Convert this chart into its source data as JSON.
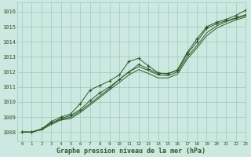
{
  "xlabel": "Graphe pression niveau de la mer (hPa)",
  "bg_color": "#cce8e0",
  "grid_color": "#99ccbb",
  "line_color": "#2d5a27",
  "xlim": [
    -0.5,
    23
  ],
  "ylim": [
    1007.4,
    1016.6
  ],
  "yticks": [
    1008,
    1009,
    1010,
    1011,
    1012,
    1013,
    1014,
    1015,
    1016
  ],
  "xticks": [
    0,
    1,
    2,
    3,
    4,
    5,
    6,
    7,
    8,
    9,
    10,
    11,
    12,
    13,
    14,
    15,
    16,
    17,
    18,
    19,
    20,
    21,
    22,
    23
  ],
  "line_main": [
    1008.0,
    1008.0,
    1008.2,
    1008.6,
    1008.9,
    1009.1,
    1009.5,
    1010.1,
    1010.6,
    1011.0,
    1011.5,
    1012.0,
    1012.5,
    1012.2,
    1011.9,
    1011.9,
    1012.1,
    1013.2,
    1014.0,
    1014.9,
    1015.2,
    1015.4,
    1015.6,
    1015.8
  ],
  "line_high": [
    1008.0,
    1008.0,
    1008.2,
    1008.7,
    1009.0,
    1009.2,
    1009.9,
    1010.8,
    1011.1,
    1011.4,
    1011.8,
    1012.7,
    1012.9,
    1012.4,
    1011.95,
    1011.85,
    1012.15,
    1013.3,
    1014.2,
    1015.0,
    1015.3,
    1015.5,
    1015.75,
    1016.1
  ],
  "line_low1": [
    1008.0,
    1008.0,
    1008.2,
    1008.6,
    1008.85,
    1009.0,
    1009.4,
    1009.9,
    1010.4,
    1010.9,
    1011.5,
    1012.0,
    1012.35,
    1012.1,
    1011.8,
    1011.75,
    1012.0,
    1013.0,
    1013.75,
    1014.6,
    1015.05,
    1015.35,
    1015.55,
    1015.75
  ],
  "line_low2": [
    1008.0,
    1008.0,
    1008.15,
    1008.5,
    1008.8,
    1008.9,
    1009.3,
    1009.8,
    1010.3,
    1010.8,
    1011.3,
    1011.8,
    1012.15,
    1011.9,
    1011.6,
    1011.6,
    1011.85,
    1012.85,
    1013.6,
    1014.4,
    1014.9,
    1015.2,
    1015.45,
    1015.65
  ],
  "markers_main": [
    0,
    1,
    2,
    3,
    4,
    5,
    6,
    7,
    8,
    9,
    10,
    11,
    12,
    13,
    14,
    15,
    16,
    17,
    18,
    19,
    20,
    21,
    22,
    23
  ],
  "markers_high": [
    0,
    1,
    2,
    3,
    4,
    5,
    6,
    7,
    8,
    9,
    10,
    11,
    12,
    13,
    14,
    15,
    16,
    17,
    18,
    19,
    20,
    21,
    22,
    23
  ],
  "markers_low1": [],
  "markers_low2": []
}
